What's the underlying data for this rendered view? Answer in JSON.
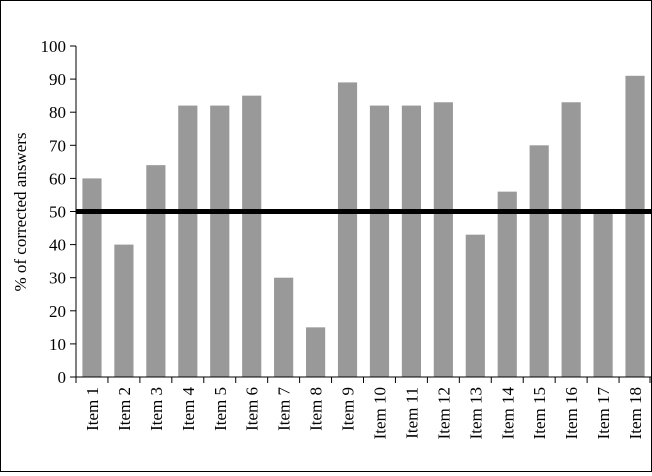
{
  "chart_data": {
    "type": "bar",
    "categories": [
      "Item 1",
      "Item 2",
      "Item 3",
      "Item 4",
      "Item 5",
      "Item 6",
      "Item 7",
      "Item 8",
      "Item 9",
      "Item 10",
      "Item 11",
      "Item 12",
      "Item 13",
      "Item 14",
      "Item 15",
      "Item 16",
      "Item 17",
      "Item 18"
    ],
    "values": [
      60,
      40,
      64,
      82,
      82,
      85,
      30,
      15,
      89,
      82,
      82,
      83,
      43,
      56,
      70,
      83,
      50,
      91
    ],
    "title": "",
    "xlabel": "",
    "ylabel": "% of corrected answers",
    "ylim": [
      0,
      100
    ],
    "yticks": [
      0,
      10,
      20,
      30,
      40,
      50,
      60,
      70,
      80,
      90,
      100
    ],
    "reference_line": 50,
    "grid": false,
    "legend": "none",
    "colors": {
      "bar": "#999999",
      "reference_line": "#000000",
      "axis": "#000000"
    }
  }
}
